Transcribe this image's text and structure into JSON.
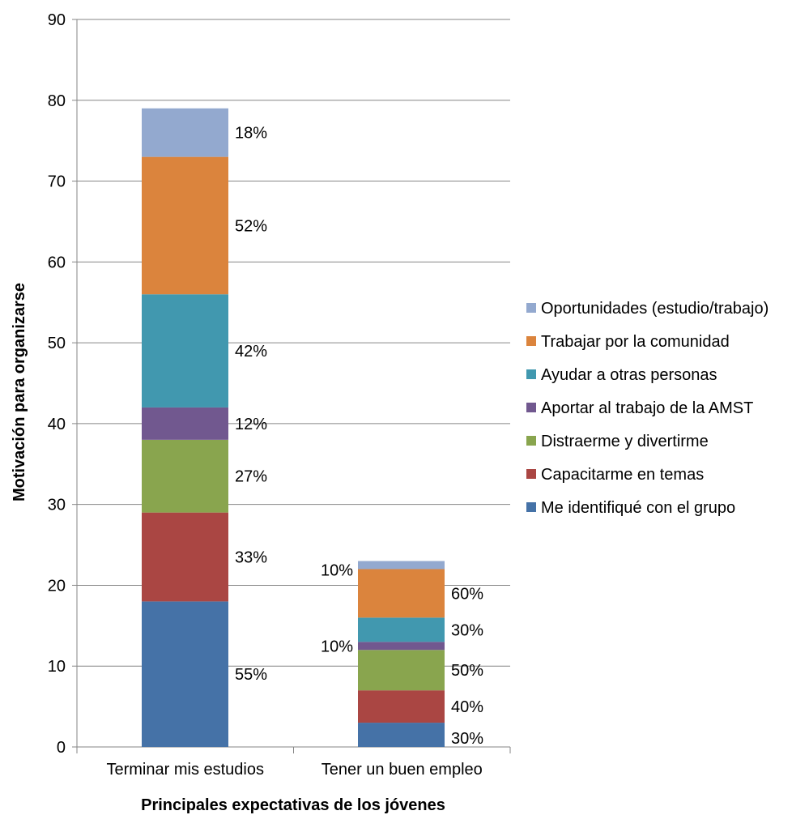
{
  "chart_data": {
    "type": "bar",
    "stacked": true,
    "xlabel": "Principales expectativas de los jóvenes",
    "ylabel": "Motivación para organizarse",
    "ylim": [
      0,
      90
    ],
    "yticks": [
      0,
      10,
      20,
      30,
      40,
      50,
      60,
      70,
      80,
      90
    ],
    "grid": true,
    "legend_position": "right",
    "categories": [
      "Terminar mis estudios",
      "Tener un buen empleo"
    ],
    "series": [
      {
        "name": "Me identifiqué con el grupo",
        "color": "#4572A7",
        "values": [
          18,
          3
        ],
        "labels": [
          "55%",
          "30%"
        ]
      },
      {
        "name": "Capacitarme en temas",
        "color": "#AA4643",
        "values": [
          11,
          4
        ],
        "labels": [
          "33%",
          "40%"
        ]
      },
      {
        "name": "Distraerme y divertirme",
        "color": "#89A54E",
        "values": [
          9,
          5
        ],
        "labels": [
          "27%",
          "50%"
        ]
      },
      {
        "name": "Aportar al trabajo de la AMST",
        "color": "#71588F",
        "values": [
          4,
          1
        ],
        "labels": [
          "12%",
          "10%"
        ]
      },
      {
        "name": "Ayudar a otras personas",
        "color": "#4198AF",
        "values": [
          14,
          3
        ],
        "labels": [
          "42%",
          "30%"
        ]
      },
      {
        "name": "Trabajar por la comunidad",
        "color": "#DB843D",
        "values": [
          17,
          6
        ],
        "labels": [
          "52%",
          "60%"
        ]
      },
      {
        "name": "Oportunidades (estudio/trabajo)",
        "color": "#93A9CF",
        "values": [
          6,
          1
        ],
        "labels": [
          "18%",
          "10%"
        ]
      }
    ]
  }
}
